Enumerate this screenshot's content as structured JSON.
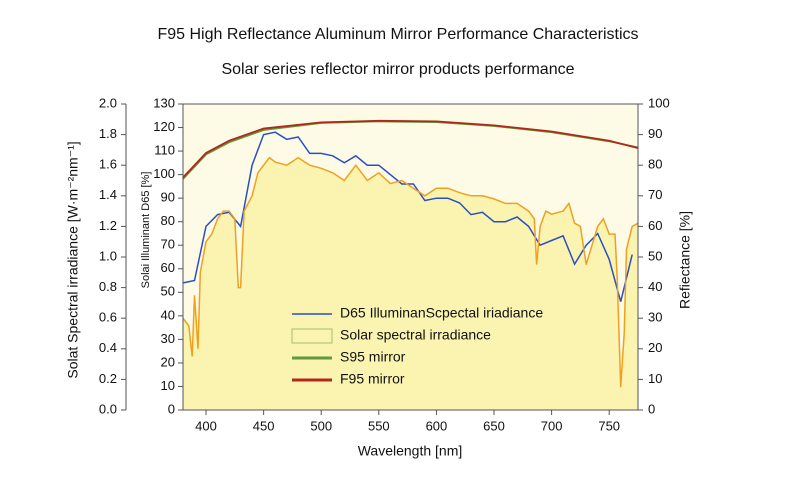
{
  "chart_data": {
    "type": "line",
    "title": "F95 High Reflectance Aluminum Mirror Performance Characteristics",
    "subtitle": "Solar series reflector mirror products performance",
    "x_label": "Wavelength [nm]",
    "y_label": "Solat Spectral irradiance [W·m⁻²nm⁻¹]",
    "y2_label": "Solai Illuminant D65 [%]",
    "y3_label": "Refiectance [%]",
    "xlim": [
      380,
      775
    ],
    "xticks": [
      400,
      450,
      500,
      550,
      600,
      650,
      700,
      750
    ],
    "ylim": [
      0,
      2
    ],
    "yticks": [
      {
        "value": 0,
        "label": "0.0"
      },
      0.2,
      0.4,
      0.6,
      0.8,
      {
        "value": 1,
        "label": "1.0"
      },
      1.2,
      1.4,
      1.6,
      1.8,
      {
        "value": 2,
        "label": "2.0"
      }
    ],
    "y2lim": [
      0,
      130
    ],
    "y2ticks": [
      0,
      10,
      20,
      30,
      40,
      50,
      60,
      70,
      80,
      90,
      100,
      110,
      120,
      130
    ],
    "y3lim": [
      0,
      100
    ],
    "y3ticks": [
      0,
      10,
      20,
      30,
      40,
      50,
      60,
      70,
      80,
      90,
      100
    ],
    "series": [
      {
        "name": "D65 IlluminanScpectal iriadiance",
        "color": "#2a4fc4",
        "axis": "y2",
        "x": [
          380,
          390,
          400,
          410,
          420,
          430,
          440,
          450,
          460,
          470,
          480,
          490,
          500,
          510,
          520,
          530,
          540,
          550,
          560,
          570,
          580,
          590,
          600,
          610,
          620,
          630,
          640,
          650,
          660,
          670,
          680,
          690,
          700,
          710,
          720,
          730,
          740,
          750,
          760,
          770
        ],
        "values": [
          54,
          55,
          78,
          83,
          84,
          78,
          104,
          117,
          118,
          115,
          116,
          109,
          109,
          108,
          105,
          108,
          104,
          104,
          100,
          96,
          96,
          89,
          90,
          90,
          88,
          83,
          84,
          80,
          80,
          82,
          78,
          70,
          72,
          74,
          62,
          70,
          75,
          64,
          46,
          66
        ]
      },
      {
        "name": "Solar spectral irradiance",
        "color": "#f0a020",
        "fill": "#fbf3b0",
        "fill_border": "#9fbf6a",
        "axis": "y",
        "x": [
          380,
          385,
          388,
          390,
          393,
          395,
          400,
          405,
          410,
          415,
          420,
          425,
          428,
          430,
          433,
          440,
          445,
          450,
          455,
          460,
          470,
          480,
          490,
          500,
          510,
          520,
          530,
          540,
          550,
          560,
          570,
          580,
          590,
          600,
          610,
          620,
          630,
          640,
          650,
          660,
          670,
          680,
          685,
          687,
          690,
          695,
          700,
          710,
          715,
          720,
          725,
          730,
          740,
          745,
          750,
          755,
          757,
          760,
          763,
          765,
          770,
          775
        ],
        "values": [
          0.6,
          0.55,
          0.35,
          0.75,
          0.4,
          0.9,
          1.1,
          1.15,
          1.25,
          1.3,
          1.3,
          1.25,
          0.8,
          0.8,
          1.3,
          1.4,
          1.55,
          1.6,
          1.65,
          1.62,
          1.6,
          1.65,
          1.6,
          1.58,
          1.55,
          1.5,
          1.6,
          1.5,
          1.55,
          1.48,
          1.5,
          1.45,
          1.4,
          1.45,
          1.45,
          1.42,
          1.4,
          1.4,
          1.38,
          1.35,
          1.35,
          1.3,
          1.25,
          0.95,
          1.2,
          1.3,
          1.28,
          1.3,
          1.35,
          1.22,
          1.2,
          0.95,
          1.2,
          1.25,
          1.15,
          1.15,
          0.85,
          0.15,
          0.5,
          1.05,
          1.2,
          1.22
        ]
      },
      {
        "name": "S95 mirror",
        "color": "#5f9a3c",
        "axis": "y3",
        "x": [
          380,
          400,
          420,
          450,
          500,
          550,
          600,
          650,
          700,
          750,
          775
        ],
        "values": [
          75.5,
          83.5,
          87.5,
          91.5,
          93.8,
          94.3,
          94.1,
          92.8,
          90.8,
          87.8,
          85.8
        ]
      },
      {
        "name": "F95 mirror",
        "color": "#b0281c",
        "axis": "y3",
        "x": [
          380,
          400,
          420,
          450,
          500,
          550,
          600,
          650,
          700,
          750,
          775
        ],
        "values": [
          76,
          84,
          88,
          92,
          94,
          94.5,
          94.3,
          93,
          91,
          88,
          85.6
        ]
      }
    ]
  }
}
